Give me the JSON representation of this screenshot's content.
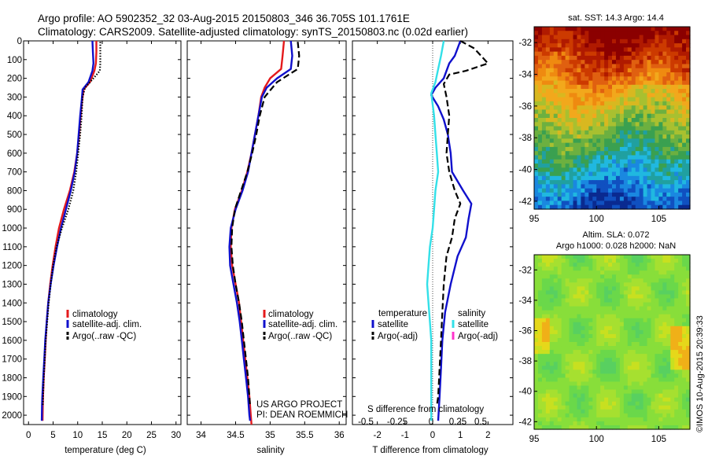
{
  "header": {
    "line1": "Argo profile: AO 5902352_32 03-Aug-2015 20150803_346 36.705S 101.1761E",
    "line2": "Climatology: CARS2009. Satellite-adjusted climatology: synTS_20150803.nc (0.02d earlier)"
  },
  "credit": {
    "line1": "US ARGO PROJECT",
    "line2": "PI: DEAN ROEMMICH"
  },
  "watermark": "©IMOS 10-Aug-2015 20:39:33",
  "colors": {
    "climatology": "#e41a1c",
    "satellite": "#1010cc",
    "argo": "#000000",
    "s_satellite": "#33e0e8",
    "s_argo": "#ff33cc"
  },
  "chart_data": [
    {
      "type": "line",
      "xlabel": "temperature (deg C)",
      "xlim": [
        -1,
        31
      ],
      "xticks": [
        0,
        5,
        10,
        15,
        20,
        25,
        30
      ],
      "ylim": [
        0,
        2050
      ],
      "yticks": [
        0,
        100,
        200,
        300,
        400,
        500,
        600,
        700,
        800,
        900,
        1000,
        1100,
        1200,
        1300,
        1400,
        1500,
        1600,
        1700,
        1800,
        1900,
        2000
      ],
      "legend": [
        "climatology",
        "satellite-adj. clim.",
        "Argo(..raw -QC)"
      ],
      "series": [
        {
          "name": "climatology",
          "color": "#e41a1c",
          "style": "solid",
          "points": [
            [
              13.8,
              0
            ],
            [
              13.8,
              60
            ],
            [
              13.7,
              120
            ],
            [
              13.4,
              160
            ],
            [
              12.5,
              220
            ],
            [
              11.2,
              260
            ],
            [
              10.9,
              320
            ],
            [
              10.6,
              400
            ],
            [
              10.3,
              500
            ],
            [
              9.9,
              600
            ],
            [
              9.3,
              700
            ],
            [
              8.4,
              800
            ],
            [
              7.2,
              900
            ],
            [
              6.2,
              1000
            ],
            [
              5.5,
              1100
            ],
            [
              4.9,
              1200
            ],
            [
              4.4,
              1300
            ],
            [
              4.0,
              1400
            ],
            [
              3.7,
              1500
            ],
            [
              3.5,
              1600
            ],
            [
              3.3,
              1700
            ],
            [
              3.1,
              1800
            ],
            [
              2.95,
              1900
            ],
            [
              2.9,
              1950
            ],
            [
              2.85,
              2030
            ]
          ]
        },
        {
          "name": "satellite-adj. clim.",
          "color": "#1010cc",
          "style": "solid",
          "points": [
            [
              13.0,
              0
            ],
            [
              13.1,
              60
            ],
            [
              13.2,
              120
            ],
            [
              13.0,
              160
            ],
            [
              12.2,
              220
            ],
            [
              11.0,
              260
            ],
            [
              10.8,
              320
            ],
            [
              10.5,
              400
            ],
            [
              10.2,
              500
            ],
            [
              9.9,
              600
            ],
            [
              9.4,
              700
            ],
            [
              8.6,
              800
            ],
            [
              7.6,
              900
            ],
            [
              6.6,
              1000
            ],
            [
              5.8,
              1100
            ],
            [
              5.1,
              1200
            ],
            [
              4.5,
              1300
            ],
            [
              4.0,
              1400
            ],
            [
              3.7,
              1500
            ],
            [
              3.4,
              1600
            ],
            [
              3.2,
              1700
            ],
            [
              3.0,
              1800
            ],
            [
              2.8,
              1900
            ],
            [
              2.75,
              1950
            ],
            [
              2.7,
              2030
            ]
          ]
        },
        {
          "name": "Argo(..raw -QC)",
          "color": "#000000",
          "style": "dotted",
          "points": [
            [
              14.6,
              5
            ],
            [
              14.6,
              60
            ],
            [
              14.6,
              120
            ],
            [
              14.5,
              160
            ],
            [
              13.2,
              200
            ],
            [
              11.5,
              250
            ],
            [
              11.0,
              300
            ],
            [
              10.8,
              400
            ],
            [
              10.5,
              500
            ],
            [
              10.1,
              600
            ],
            [
              9.7,
              700
            ],
            [
              9.1,
              800
            ],
            [
              8.1,
              900
            ],
            [
              6.8,
              1000
            ],
            [
              5.7,
              1100
            ],
            [
              5.0,
              1200
            ],
            [
              4.5,
              1300
            ],
            [
              4.1,
              1400
            ],
            [
              3.8,
              1500
            ],
            [
              3.5,
              1600
            ],
            [
              3.3,
              1700
            ],
            [
              3.1,
              1800
            ],
            [
              2.95,
              1900
            ],
            [
              2.9,
              1950
            ]
          ]
        }
      ]
    },
    {
      "type": "line",
      "xlabel": "salinity",
      "xlim": [
        33.8,
        36.1
      ],
      "xticks": [
        34,
        34.5,
        35,
        35.5,
        36
      ],
      "ylim": [
        0,
        2050
      ],
      "legend": [
        "climatology",
        "satellite-adj. clim.",
        "Argo(..raw -QC)"
      ],
      "series": [
        {
          "name": "climatology",
          "color": "#e41a1c",
          "style": "solid",
          "points": [
            [
              35.2,
              0
            ],
            [
              35.18,
              80
            ],
            [
              35.16,
              150
            ],
            [
              35.0,
              200
            ],
            [
              34.92,
              250
            ],
            [
              34.87,
              300
            ],
            [
              34.83,
              400
            ],
            [
              34.78,
              500
            ],
            [
              34.73,
              600
            ],
            [
              34.67,
              700
            ],
            [
              34.59,
              800
            ],
            [
              34.49,
              900
            ],
            [
              34.44,
              1000
            ],
            [
              34.43,
              1100
            ],
            [
              34.45,
              1200
            ],
            [
              34.5,
              1300
            ],
            [
              34.55,
              1400
            ],
            [
              34.58,
              1500
            ],
            [
              34.61,
              1600
            ],
            [
              34.64,
              1700
            ],
            [
              34.67,
              1800
            ],
            [
              34.7,
              1900
            ],
            [
              34.72,
              2000
            ],
            [
              34.73,
              2050
            ]
          ]
        },
        {
          "name": "satellite-adj. clim.",
          "color": "#1010cc",
          "style": "solid",
          "points": [
            [
              35.3,
              0
            ],
            [
              35.32,
              80
            ],
            [
              35.3,
              150
            ],
            [
              35.1,
              200
            ],
            [
              34.95,
              250
            ],
            [
              34.88,
              300
            ],
            [
              34.83,
              400
            ],
            [
              34.78,
              500
            ],
            [
              34.73,
              600
            ],
            [
              34.68,
              700
            ],
            [
              34.6,
              800
            ],
            [
              34.5,
              900
            ],
            [
              34.43,
              1000
            ],
            [
              34.41,
              1100
            ],
            [
              34.42,
              1200
            ],
            [
              34.47,
              1300
            ],
            [
              34.52,
              1400
            ],
            [
              34.56,
              1500
            ],
            [
              34.59,
              1600
            ],
            [
              34.62,
              1700
            ],
            [
              34.65,
              1800
            ],
            [
              34.68,
              1900
            ],
            [
              34.7,
              2000
            ],
            [
              34.71,
              2030
            ]
          ]
        },
        {
          "name": "Argo(..raw -QC)",
          "color": "#000000",
          "style": "dashed",
          "points": [
            [
              35.4,
              5
            ],
            [
              35.42,
              80
            ],
            [
              35.4,
              150
            ],
            [
              35.1,
              220
            ],
            [
              34.92,
              300
            ],
            [
              34.85,
              400
            ],
            [
              34.8,
              500
            ],
            [
              34.74,
              600
            ],
            [
              34.67,
              700
            ],
            [
              34.58,
              800
            ],
            [
              34.49,
              900
            ],
            [
              34.45,
              1000
            ],
            [
              34.44,
              1100
            ],
            [
              34.46,
              1200
            ],
            [
              34.5,
              1300
            ],
            [
              34.55,
              1400
            ],
            [
              34.59,
              1500
            ],
            [
              34.62,
              1600
            ],
            [
              34.65,
              1700
            ],
            [
              34.68,
              1800
            ],
            [
              34.7,
              1900
            ],
            [
              34.71,
              1950
            ]
          ]
        }
      ]
    },
    {
      "type": "line",
      "xlabel": "T difference from climatology",
      "top_label": "S difference from climatology",
      "xlim": [
        -2.9,
        2.9
      ],
      "xticks": [
        -2,
        -1,
        0,
        1,
        2
      ],
      "top_ticks": [
        "-0.5",
        "-0.25",
        "0",
        "0.25",
        "0.5"
      ],
      "ylim": [
        0,
        2050
      ],
      "legend_titles": [
        "temperature",
        "salinity"
      ],
      "legend": [
        "satellite",
        "Argo(-adj)",
        "satellite",
        "Argo(-adj)"
      ],
      "series": [
        {
          "name": "temperature satellite",
          "color": "#1010cc",
          "style": "solid",
          "points": [
            [
              1.0,
              0
            ],
            [
              0.9,
              40
            ],
            [
              0.8,
              80
            ],
            [
              0.6,
              120
            ],
            [
              0.5,
              160
            ],
            [
              0.4,
              200
            ],
            [
              0.1,
              250
            ],
            [
              -0.05,
              290
            ],
            [
              0.2,
              350
            ],
            [
              0.4,
              420
            ],
            [
              0.55,
              500
            ],
            [
              0.65,
              600
            ],
            [
              0.7,
              700
            ],
            [
              1.1,
              800
            ],
            [
              1.4,
              870
            ],
            [
              1.3,
              950
            ],
            [
              1.2,
              1050
            ],
            [
              0.9,
              1150
            ],
            [
              0.65,
              1300
            ],
            [
              0.45,
              1450
            ],
            [
              0.35,
              1600
            ],
            [
              0.3,
              1750
            ],
            [
              0.25,
              1900
            ],
            [
              0.2,
              2030
            ]
          ]
        },
        {
          "name": "temperature Argo(-adj)",
          "color": "#000000",
          "style": "dashed",
          "points": [
            [
              1.0,
              0
            ],
            [
              1.5,
              40
            ],
            [
              2.0,
              120
            ],
            [
              1.2,
              160
            ],
            [
              0.6,
              180
            ],
            [
              0.4,
              230
            ],
            [
              0.5,
              300
            ],
            [
              0.6,
              400
            ],
            [
              0.55,
              500
            ],
            [
              0.5,
              600
            ],
            [
              0.6,
              700
            ],
            [
              0.8,
              800
            ],
            [
              1.0,
              870
            ],
            [
              0.8,
              950
            ],
            [
              0.7,
              1050
            ],
            [
              0.5,
              1150
            ],
            [
              0.4,
              1300
            ],
            [
              0.35,
              1450
            ],
            [
              0.3,
              1600
            ],
            [
              0.25,
              1750
            ],
            [
              0.2,
              1900
            ],
            [
              0.15,
              1950
            ]
          ]
        },
        {
          "name": "salinity satellite",
          "color": "#33e0e8",
          "style": "solid",
          "points": [
            [
              0.4,
              0
            ],
            [
              0.3,
              80
            ],
            [
              0.2,
              150
            ],
            [
              0.1,
              220
            ],
            [
              -0.05,
              280
            ],
            [
              0.05,
              400
            ],
            [
              0.1,
              500
            ],
            [
              0.15,
              600
            ],
            [
              0.2,
              700
            ],
            [
              0.1,
              800
            ],
            [
              0.05,
              900
            ],
            [
              0.0,
              1000
            ],
            [
              -0.1,
              1100
            ],
            [
              -0.15,
              1200
            ],
            [
              -0.2,
              1300
            ],
            [
              -0.15,
              1400
            ],
            [
              -0.1,
              1500
            ],
            [
              -0.05,
              1600
            ],
            [
              -0.05,
              1700
            ],
            [
              -0.05,
              1800
            ],
            [
              -0.05,
              1900
            ],
            [
              -0.05,
              2030
            ]
          ]
        }
      ]
    },
    {
      "type": "heatmap",
      "title": "sat. SST: 14.3 Argo: 14.4",
      "xticks": [
        "95",
        "100",
        "105"
      ],
      "yticks": [
        "-32",
        "-34",
        "-36",
        "-38",
        "-40",
        "-42"
      ],
      "xlim": [
        95,
        107.5
      ],
      "ylim": [
        -42.5,
        -31
      ]
    },
    {
      "type": "heatmap",
      "title_line1": "Altim. SLA: 0.072",
      "title_line2": "Argo h1000: 0.028 h2000: NaN",
      "xticks": [
        "95",
        "100",
        "105"
      ],
      "yticks": [
        "-32",
        "-34",
        "-36",
        "-38",
        "-40",
        "-42"
      ],
      "xlim": [
        95,
        107.5
      ],
      "ylim": [
        -42.5,
        -31
      ]
    }
  ]
}
